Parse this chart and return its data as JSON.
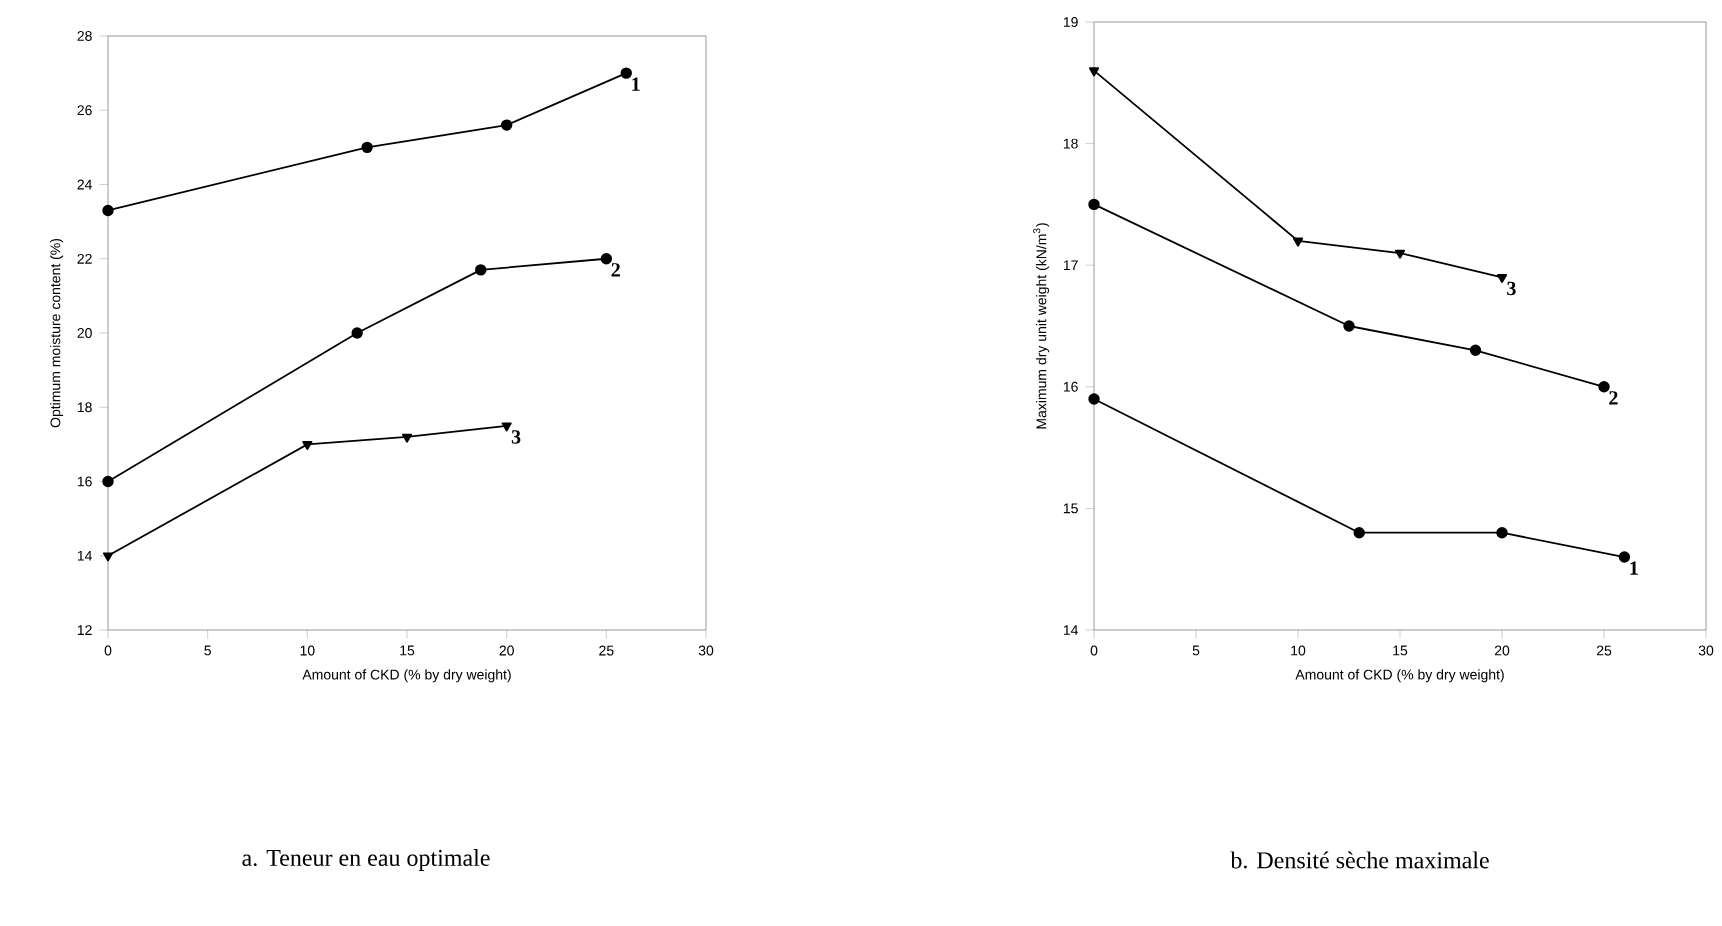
{
  "chart_data": [
    {
      "type": "line",
      "title": "a. Teneur en eau optimale",
      "xlabel": "Amount of CKD (% by dry weight)",
      "ylabel": "Optimum moisture content (%)",
      "xlim": [
        0,
        30
      ],
      "ylim": [
        12,
        28
      ],
      "xticks": [
        0,
        5,
        10,
        15,
        20,
        25,
        30
      ],
      "yticks": [
        12,
        14,
        16,
        18,
        20,
        22,
        24,
        26,
        28
      ],
      "grid": false,
      "legend": false,
      "line_style": "solid",
      "series": [
        {
          "name": "1",
          "color": "#000000",
          "marker": "circle",
          "x": [
            0,
            13,
            20,
            26
          ],
          "values": [
            23.3,
            25,
            25.6,
            27
          ]
        },
        {
          "name": "2",
          "color": "#000000",
          "marker": "circle",
          "x": [
            0,
            12.5,
            18.7,
            25
          ],
          "values": [
            16,
            20,
            21.7,
            22
          ]
        },
        {
          "name": "3",
          "color": "#000000",
          "marker": "triangle",
          "x": [
            0,
            10,
            15,
            20
          ],
          "values": [
            14,
            17,
            17.2,
            17.5
          ]
        }
      ]
    },
    {
      "type": "line",
      "title": "b. Densité sèche maximale",
      "xlabel": "Amount of CKD (% by dry weight)",
      "ylabel": "Maximum dry unit weight (kN/m$^{3}$)",
      "xlim": [
        0,
        30
      ],
      "ylim": [
        14,
        19
      ],
      "xticks": [
        0,
        5,
        10,
        15,
        20,
        25,
        30
      ],
      "yticks": [
        14,
        15,
        16,
        17,
        18,
        19
      ],
      "grid": false,
      "legend": false,
      "line_style": "solid",
      "series": [
        {
          "name": "3",
          "color": "#000000",
          "marker": "triangle",
          "x": [
            0,
            10,
            15,
            20
          ],
          "values": [
            18.6,
            17.2,
            17.1,
            16.9
          ]
        },
        {
          "name": "2",
          "color": "#000000",
          "marker": "circle",
          "x": [
            0,
            12.5,
            18.7,
            25
          ],
          "values": [
            17.5,
            16.5,
            16.3,
            16
          ]
        },
        {
          "name": "1",
          "color": "#000000",
          "marker": "circle",
          "x": [
            0,
            13,
            20,
            26
          ],
          "values": [
            15.9,
            14.8,
            14.8,
            14.6
          ]
        }
      ]
    }
  ]
}
